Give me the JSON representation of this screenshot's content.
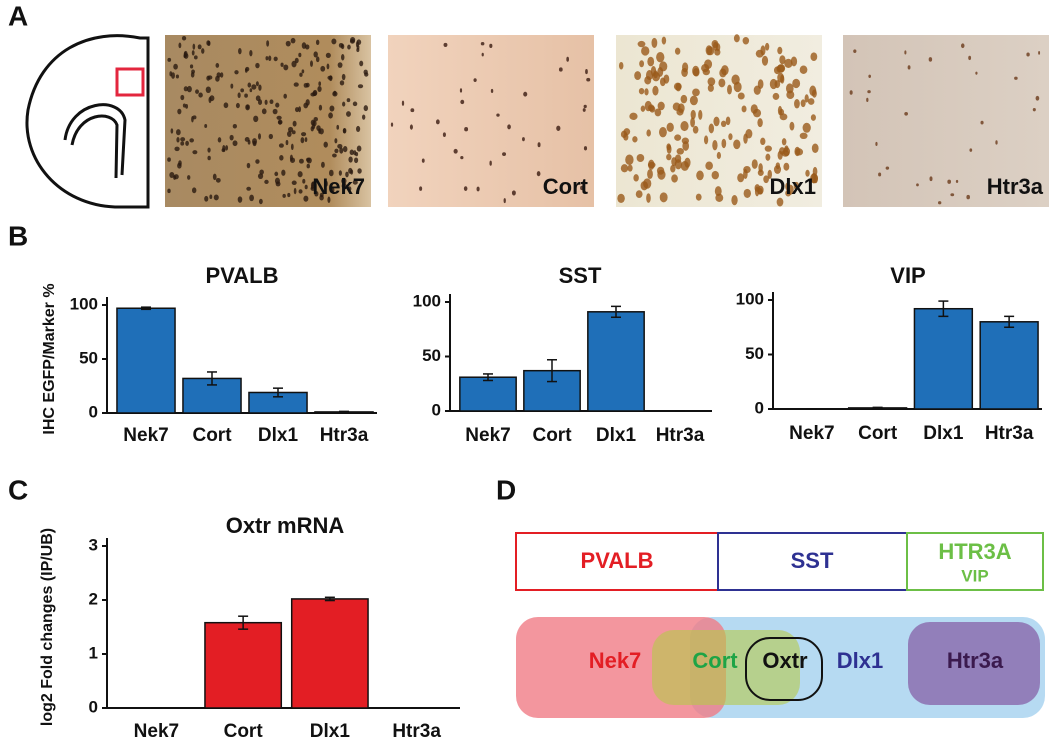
{
  "panel_labels": [
    "A",
    "B",
    "C",
    "D"
  ],
  "panel_a": {
    "image_labels": [
      "Nek7",
      "Cort",
      "Dlx1",
      "Htr3a"
    ]
  },
  "chart_data": [
    {
      "type": "bar",
      "title": "PVALB",
      "ylabel": "IHC EGFP/Marker %",
      "categories": [
        "Nek7",
        "Cort",
        "Dlx1",
        "Htr3a"
      ],
      "values": [
        97,
        32,
        19,
        1
      ],
      "errors": [
        1,
        6,
        4,
        0.5
      ],
      "color": "#1f6fb8",
      "ylim": [
        0,
        100
      ],
      "yticks": [
        0,
        50,
        100
      ]
    },
    {
      "type": "bar",
      "title": "SST",
      "categories": [
        "Nek7",
        "Cort",
        "Dlx1",
        "Htr3a"
      ],
      "values": [
        31,
        37,
        91,
        0
      ],
      "errors": [
        3,
        10,
        5,
        0
      ],
      "color": "#1f6fb8",
      "ylim": [
        0,
        100
      ],
      "yticks": [
        0,
        50,
        100
      ]
    },
    {
      "type": "bar",
      "title": "VIP",
      "categories": [
        "Nek7",
        "Cort",
        "Dlx1",
        "Htr3a"
      ],
      "values": [
        0,
        1,
        92,
        80
      ],
      "errors": [
        0,
        0.5,
        7,
        5
      ],
      "color": "#1f6fb8",
      "ylim": [
        0,
        100
      ],
      "yticks": [
        0,
        50,
        100
      ]
    },
    {
      "type": "bar",
      "title": "Oxtr mRNA",
      "ylabel": "log2 Fold changes (IP/UB)",
      "categories": [
        "Nek7",
        "Cort",
        "Dlx1",
        "Htr3a"
      ],
      "values": [
        0,
        1.58,
        2.02,
        0
      ],
      "errors": [
        0,
        0.12,
        0.03,
        0
      ],
      "color": "#e31e24",
      "ylim": [
        0,
        3
      ],
      "yticks": [
        0,
        1,
        2,
        3
      ]
    }
  ],
  "panel_d": {
    "boxes": [
      {
        "label": "PVALB"
      },
      {
        "label": "SST"
      },
      {
        "label": "HTR3A",
        "sublabel": "VIP"
      }
    ],
    "regions": [
      "Nek7",
      "Cort",
      "Oxtr",
      "Dlx1",
      "Htr3a"
    ]
  }
}
